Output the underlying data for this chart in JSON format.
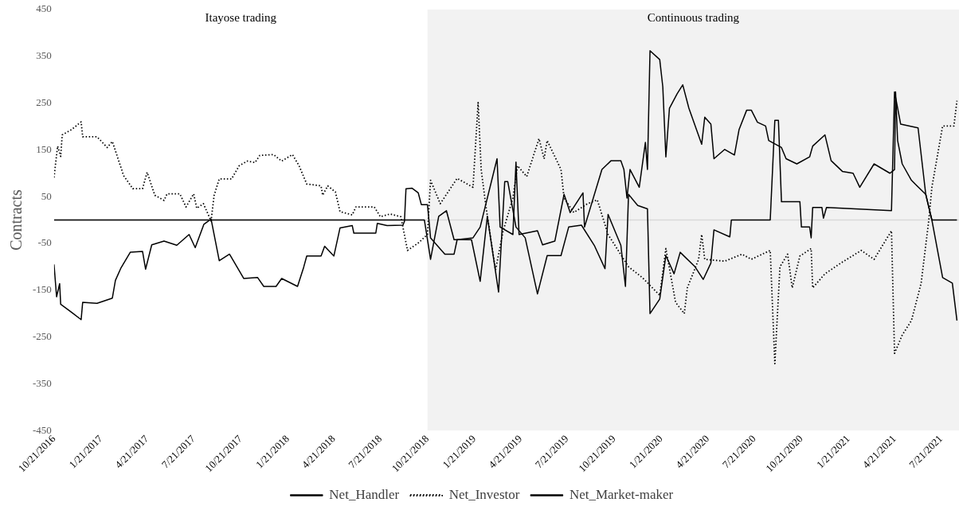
{
  "chart_data": {
    "type": "line",
    "ylabel": "Contracts",
    "xlim": [
      "2016-10-21",
      "2021-08-25"
    ],
    "xticks": [
      {
        "value": "2016-10-21",
        "label": "10/21/2016"
      },
      {
        "value": "2017-01-21",
        "label": "1/21/2017"
      },
      {
        "value": "2017-04-21",
        "label": "4/21/2017"
      },
      {
        "value": "2017-07-21",
        "label": "7/21/2017"
      },
      {
        "value": "2017-10-21",
        "label": "10/21/2017"
      },
      {
        "value": "2018-01-21",
        "label": "1/21/2018"
      },
      {
        "value": "2018-04-21",
        "label": "4/21/2018"
      },
      {
        "value": "2018-07-21",
        "label": "7/21/2018"
      },
      {
        "value": "2018-10-21",
        "label": "10/21/2018"
      },
      {
        "value": "2019-01-21",
        "label": "1/21/2019"
      },
      {
        "value": "2019-04-21",
        "label": "4/21/2019"
      },
      {
        "value": "2019-07-21",
        "label": "7/21/2019"
      },
      {
        "value": "2019-10-21",
        "label": "10/21/2019"
      },
      {
        "value": "2020-01-21",
        "label": "1/21/2020"
      },
      {
        "value": "2020-04-21",
        "label": "4/21/2020"
      },
      {
        "value": "2020-07-21",
        "label": "7/21/2020"
      },
      {
        "value": "2020-10-21",
        "label": "10/21/2020"
      },
      {
        "value": "2021-01-21",
        "label": "1/21/2021"
      },
      {
        "value": "2021-04-21",
        "label": "4/21/2021"
      },
      {
        "value": "2021-07-21",
        "label": "7/21/2021"
      }
    ],
    "ylim": [
      -450,
      450
    ],
    "yticks": [
      -450,
      -350,
      -250,
      -150,
      -50,
      50,
      150,
      250,
      350,
      450
    ],
    "grid": false,
    "legend": "bottom",
    "marker": "none",
    "annotations": [
      "Itayose trading"
    ],
    "bands": [
      {
        "axis": "x",
        "from": "2018-10-21",
        "to": "2021-08-25",
        "label": "Continuous trading",
        "color": "#f2f2f2"
      }
    ],
    "ref_lines": [
      {
        "axis": "y",
        "value": 0,
        "color": "#d9d9d9"
      }
    ],
    "series": [
      {
        "name": "Net_Handler",
        "color": "#000000",
        "line_style": "solid",
        "x": [
          "2016-10-21",
          "2016-10-26",
          "2016-11-01",
          "2016-11-03",
          "2016-11-25",
          "2016-12-13",
          "2016-12-16",
          "2017-01-13",
          "2017-02-12",
          "2017-02-18",
          "2017-03-01",
          "2017-03-19",
          "2017-04-12",
          "2017-04-18",
          "2017-04-30",
          "2017-05-24",
          "2017-06-18",
          "2017-07-12",
          "2017-07-24",
          "2017-08-10",
          "2017-08-24",
          "2017-09-09",
          "2017-09-29",
          "2017-10-27",
          "2017-11-23",
          "2017-12-05",
          "2017-12-29",
          "2018-01-09",
          "2018-02-09",
          "2018-02-21",
          "2018-02-27",
          "2018-03-27",
          "2018-04-03",
          "2018-04-21",
          "2018-05-03",
          "2018-05-27",
          "2018-05-30",
          "2018-07-12",
          "2018-07-15",
          "2018-08-03",
          "2018-09-03",
          "2018-09-06",
          "2018-09-09",
          "2018-09-21",
          "2018-10-03",
          "2018-10-09",
          "2018-10-21",
          "2018-10-27",
          "2018-11-24",
          "2018-12-12",
          "2018-12-18",
          "2019-01-18",
          "2019-02-01",
          "2019-03-06",
          "2019-03-12",
          "2019-04-06",
          "2019-04-12",
          "2019-04-18",
          "2019-05-24",
          "2019-06-03",
          "2019-06-27",
          "2019-07-15",
          "2019-07-27",
          "2019-08-21",
          "2019-08-24",
          "2019-09-27",
          "2019-10-15",
          "2019-11-03",
          "2019-11-09",
          "2019-11-15",
          "2019-11-21",
          "2019-12-09",
          "2019-12-21",
          "2019-12-25",
          "2019-12-30",
          "2020-01-18",
          "2020-01-24",
          "2020-01-30",
          "2020-02-06",
          "2020-02-21",
          "2020-03-03",
          "2020-03-15",
          "2020-04-09",
          "2020-04-15",
          "2020-04-27",
          "2020-05-03",
          "2020-05-24",
          "2020-06-12",
          "2020-06-21",
          "2020-07-06",
          "2020-07-15",
          "2020-07-27",
          "2020-08-12",
          "2020-08-18",
          "2020-09-12",
          "2020-09-21",
          "2020-10-12",
          "2020-11-06",
          "2020-11-12",
          "2020-12-06",
          "2020-12-18",
          "2021-01-09",
          "2021-01-30",
          "2021-02-12",
          "2021-03-12",
          "2021-04-12",
          "2021-04-21",
          "2021-04-23",
          "2021-04-27",
          "2021-05-06",
          "2021-05-24",
          "2021-06-03",
          "2021-06-21",
          "2021-07-03",
          "2021-07-24",
          "2021-08-12",
          "2021-08-21"
        ],
        "values": [
          -95,
          -164,
          -136,
          -180,
          -198,
          -213,
          -176,
          -178,
          -167,
          -129,
          -102,
          -69,
          -67,
          -105,
          -53,
          -45,
          -54,
          -31,
          -59,
          -9,
          2,
          -87,
          -73,
          -125,
          -123,
          -142,
          -142,
          -125,
          -142,
          -101,
          -77,
          -77,
          -56,
          -77,
          -17,
          -12,
          -28,
          -28,
          -7,
          -12,
          -11,
          -3,
          67,
          68,
          58,
          33,
          33,
          -38,
          -73,
          -73,
          -42,
          -38,
          -15,
          131,
          -15,
          -31,
          124,
          -31,
          -23,
          -53,
          -45,
          55,
          16,
          58,
          -15,
          108,
          127,
          127,
          108,
          47,
          108,
          70,
          166,
          108,
          362,
          343,
          285,
          135,
          239,
          270,
          289,
          239,
          162,
          220,
          205,
          131,
          151,
          139,
          193,
          235,
          235,
          209,
          201,
          170,
          155,
          131,
          120,
          135,
          158,
          182,
          127,
          104,
          100,
          70,
          120,
          100,
          108,
          274,
          170,
          120,
          85,
          74,
          55,
          0,
          -123,
          -135,
          -215
        ]
      },
      {
        "name": "Net_Investor",
        "color": "#000000",
        "line_style": "dotted",
        "x": [
          "2016-10-21",
          "2016-10-28",
          "2016-11-03",
          "2016-11-06",
          "2016-11-25",
          "2016-12-13",
          "2016-12-16",
          "2017-01-13",
          "2017-02-02",
          "2017-02-12",
          "2017-03-06",
          "2017-03-24",
          "2017-04-12",
          "2017-04-21",
          "2017-05-06",
          "2017-05-24",
          "2017-05-30",
          "2017-06-24",
          "2017-07-06",
          "2017-07-21",
          "2017-07-27",
          "2017-08-09",
          "2017-08-24",
          "2017-08-30",
          "2017-09-09",
          "2017-10-03",
          "2017-10-18",
          "2017-11-03",
          "2017-11-18",
          "2017-11-27",
          "2017-12-24",
          "2018-01-09",
          "2018-01-30",
          "2018-02-12",
          "2018-02-27",
          "2018-03-27",
          "2018-03-30",
          "2018-04-09",
          "2018-04-24",
          "2018-05-03",
          "2018-05-27",
          "2018-06-03",
          "2018-07-09",
          "2018-07-21",
          "2018-08-09",
          "2018-08-30",
          "2018-09-12",
          "2018-10-03",
          "2018-10-21",
          "2018-10-27",
          "2018-11-15",
          "2018-12-18",
          "2019-01-18",
          "2019-01-28",
          "2019-02-03",
          "2019-02-12",
          "2019-03-03",
          "2019-03-18",
          "2019-04-06",
          "2019-04-15",
          "2019-05-03",
          "2019-05-27",
          "2019-06-06",
          "2019-06-12",
          "2019-07-09",
          "2019-07-15",
          "2019-08-03",
          "2019-08-30",
          "2019-09-18",
          "2019-10-09",
          "2019-11-18",
          "2019-12-15",
          "2020-01-18",
          "2020-01-30",
          "2020-02-18",
          "2020-03-06",
          "2020-03-12",
          "2020-04-03",
          "2020-04-09",
          "2020-04-15",
          "2020-05-24",
          "2020-06-27",
          "2020-07-15",
          "2020-08-21",
          "2020-08-30",
          "2020-09-09",
          "2020-09-24",
          "2020-10-03",
          "2020-10-18",
          "2020-11-09",
          "2020-11-12",
          "2020-12-06",
          "2021-01-06",
          "2021-02-15",
          "2021-03-12",
          "2021-04-15",
          "2021-04-21",
          "2021-05-06",
          "2021-05-24",
          "2021-06-12",
          "2021-06-27",
          "2021-07-03",
          "2021-07-24",
          "2021-08-15",
          "2021-08-21"
        ],
        "values": [
          91,
          158,
          136,
          182,
          194,
          210,
          178,
          178,
          155,
          168,
          95,
          67,
          67,
          102,
          53,
          42,
          56,
          56,
          28,
          56,
          25,
          35,
          -2,
          53,
          88,
          88,
          116,
          126,
          123,
          138,
          140,
          126,
          140,
          116,
          77,
          73,
          53,
          73,
          60,
          18,
          11,
          28,
          28,
          7,
          13,
          7,
          -65,
          -49,
          -31,
          85,
          35,
          89,
          70,
          251,
          108,
          31,
          -107,
          -23,
          47,
          116,
          93,
          174,
          131,
          170,
          108,
          47,
          16,
          35,
          43,
          -31,
          -100,
          -123,
          -161,
          -61,
          -176,
          -200,
          -145,
          -84,
          -31,
          -84,
          -88,
          -73,
          -84,
          -65,
          -307,
          -100,
          -73,
          -145,
          -77,
          -61,
          -145,
          -115,
          -92,
          -65,
          -84,
          -23,
          -285,
          -246,
          -215,
          -135,
          0,
          70,
          201,
          201,
          255
        ]
      },
      {
        "name": "Net_Market-maker",
        "color": "#000000",
        "line_style": "solid",
        "x": [
          "2016-10-21",
          "2018-10-15",
          "2018-10-27",
          "2018-11-12",
          "2018-11-27",
          "2018-12-12",
          "2019-01-15",
          "2019-02-01",
          "2019-02-15",
          "2019-03-09",
          "2019-03-21",
          "2019-03-27",
          "2019-04-12",
          "2019-04-30",
          "2019-05-24",
          "2019-06-12",
          "2019-07-09",
          "2019-07-24",
          "2019-08-18",
          "2019-09-12",
          "2019-10-03",
          "2019-10-09",
          "2019-11-03",
          "2019-11-12",
          "2019-11-18",
          "2019-12-06",
          "2019-12-25",
          "2019-12-30",
          "2020-01-18",
          "2020-01-30",
          "2020-02-15",
          "2020-02-27",
          "2020-03-27",
          "2020-04-12",
          "2020-04-27",
          "2020-05-03",
          "2020-06-03",
          "2020-06-06",
          "2020-08-21",
          "2020-08-30",
          "2020-09-06",
          "2020-09-12",
          "2020-10-18",
          "2020-10-21",
          "2020-11-06",
          "2020-11-09",
          "2020-11-12",
          "2020-11-30",
          "2020-12-03",
          "2020-12-09",
          "2021-04-15",
          "2021-04-21",
          "2021-05-03",
          "2021-06-06",
          "2021-06-21",
          "2021-07-03",
          "2021-08-21"
        ],
        "values": [
          0,
          0,
          -84,
          8,
          20,
          -42,
          -42,
          -131,
          8,
          -154,
          82,
          82,
          -15,
          -38,
          -158,
          -76,
          -76,
          -15,
          -11,
          -54,
          -104,
          12,
          -54,
          -142,
          55,
          31,
          24,
          -200,
          -169,
          -76,
          -115,
          -69,
          -100,
          -127,
          -92,
          -21,
          -36,
          0,
          0,
          213,
          213,
          39,
          39,
          -15,
          -15,
          -38,
          27,
          27,
          4,
          27,
          20,
          274,
          205,
          197,
          55,
          0,
          0
        ]
      }
    ]
  }
}
